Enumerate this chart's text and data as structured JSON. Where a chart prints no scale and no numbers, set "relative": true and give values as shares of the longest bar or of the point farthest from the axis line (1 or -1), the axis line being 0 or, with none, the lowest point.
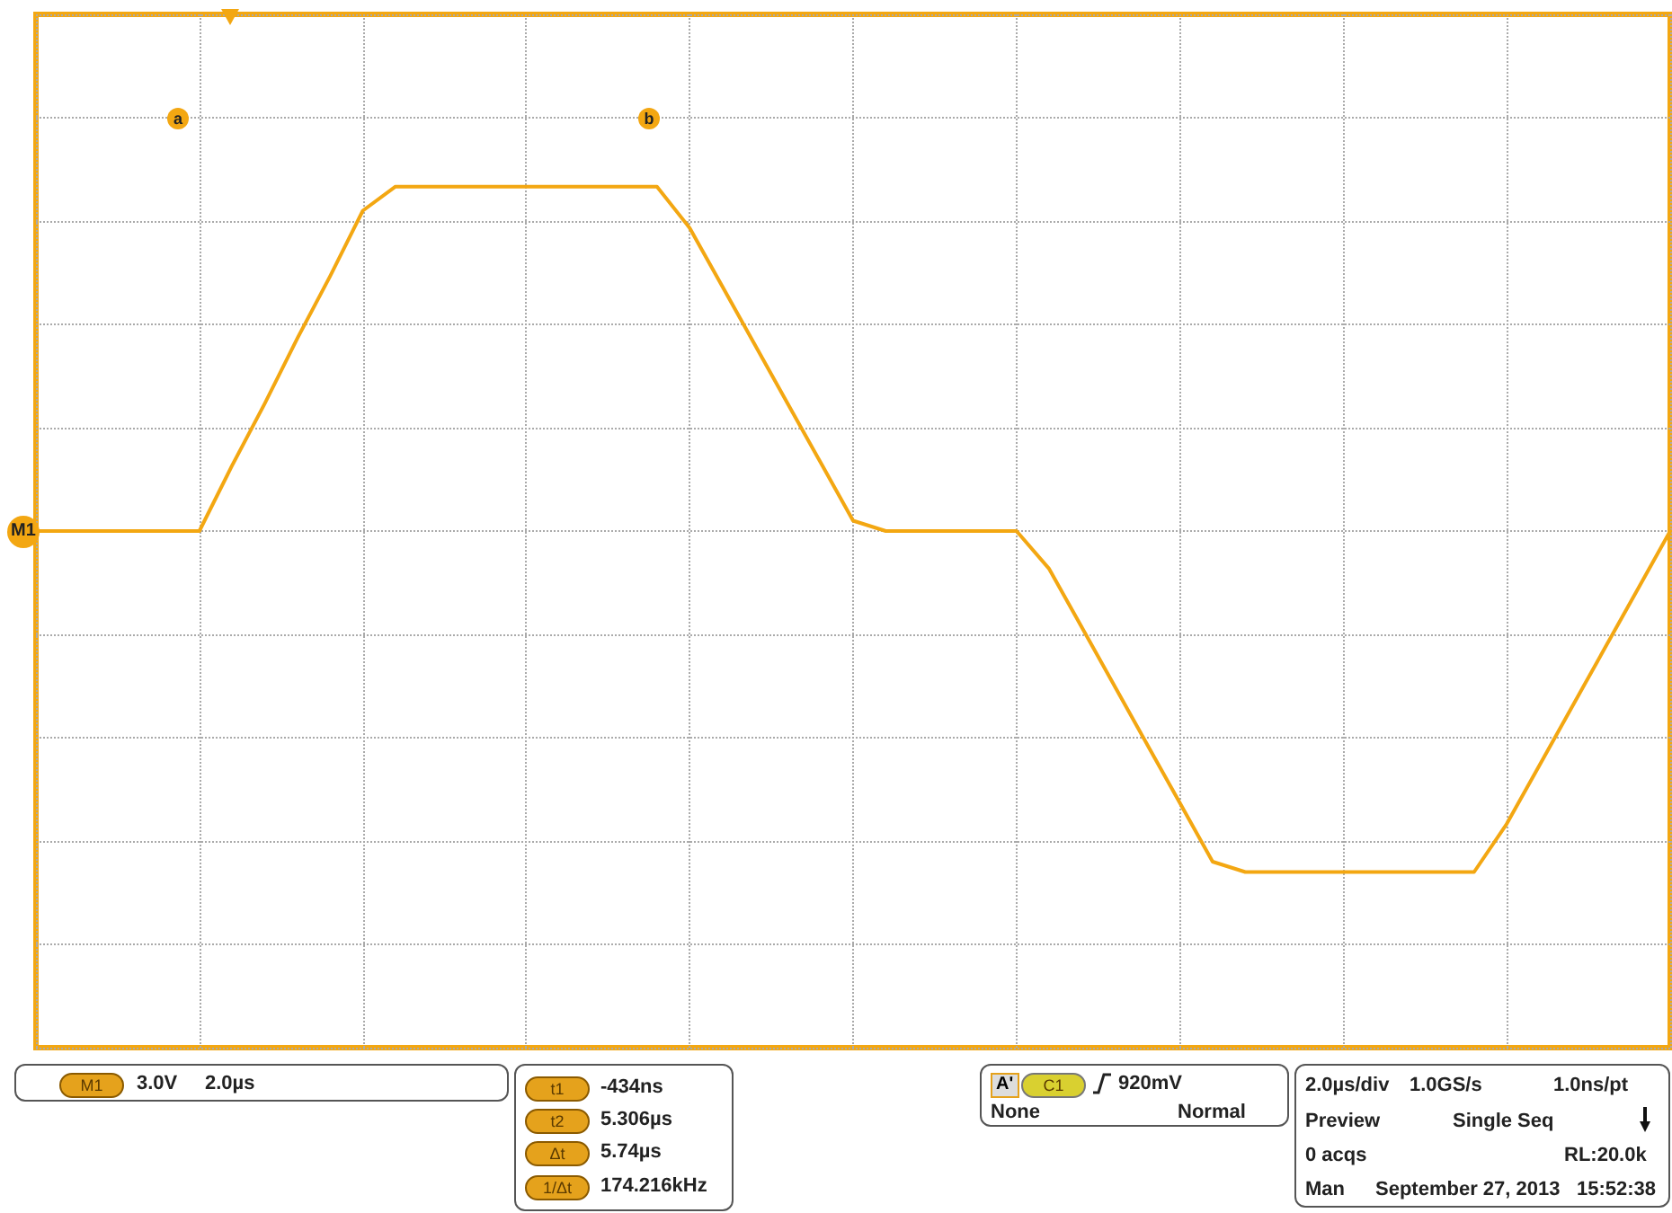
{
  "chart_data": {
    "type": "line",
    "categories": [
      null,
      null,
      null,
      null,
      null,
      null,
      null,
      null,
      null,
      null,
      null,
      null,
      null,
      null,
      null,
      null,
      null,
      null,
      null,
      null,
      null,
      null,
      null,
      null,
      null,
      null,
      null,
      null,
      null,
      null,
      null,
      null,
      null,
      null,
      null,
      null,
      null,
      null,
      null,
      null,
      null,
      null,
      null,
      null,
      null,
      null,
      null,
      null,
      null,
      null,
      null
    ],
    "relative": true,
    "series": [
      {
        "color": "#f3a712",
        "values": [
          0,
          0,
          0,
          0,
          0,
          0,
          0.19,
          0.37,
          0.56,
          0.74,
          0.93,
          1,
          1,
          1,
          1,
          1,
          1,
          1,
          1,
          1,
          0.88,
          0.71,
          0.54,
          0.37,
          0.2,
          0.03,
          0,
          0,
          0,
          0,
          0,
          -0.11,
          -0.28,
          -0.45,
          -0.62,
          -0.79,
          -0.96,
          -0.99,
          -0.99,
          -0.99,
          -0.99,
          -0.99,
          -0.99,
          -0.99,
          -0.99,
          -0.85,
          -0.68,
          -0.51,
          -0.34,
          -0.17,
          0
        ]
      }
    ],
    "tick_labels": false,
    "grid": true,
    "marker": "none",
    "line_style": "solid",
    "annotations": [
      "M1",
      "M1",
      "3.0V",
      "2.0µs",
      "t1",
      "-434ns",
      "t2",
      "5.306µs",
      "Δt",
      "5.74µs",
      "1/Δt",
      "174.216kHz",
      "A'",
      "C1",
      "920mV",
      "None",
      "Normal",
      "2.0µs/div",
      "1.0GS/s",
      "1.0ns/pt",
      "Preview",
      "Single Seq",
      "0 acqs",
      "RL:20.0k",
      "Man",
      "September 27, 2013",
      "15:52:38",
      "a",
      "b"
    ]
  }
}
